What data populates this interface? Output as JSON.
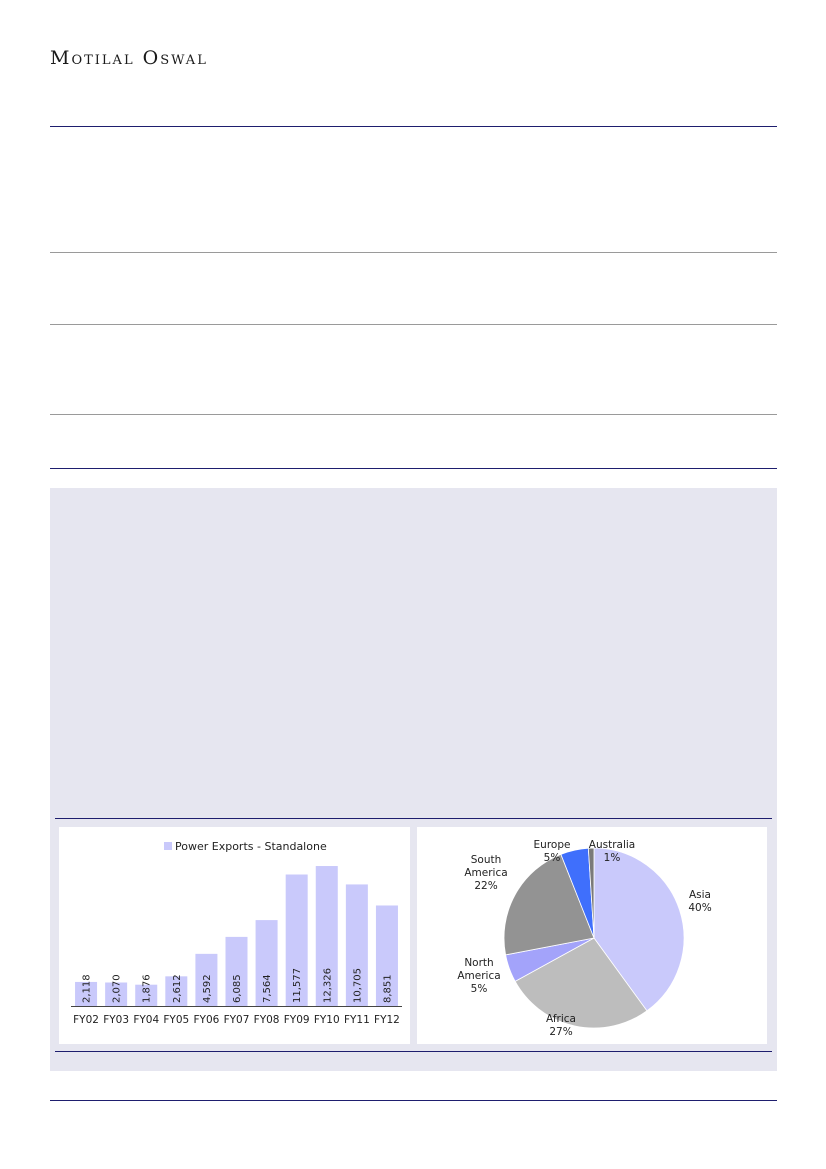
{
  "header": {
    "logo_text": "Motilal Oswal"
  },
  "colors": {
    "bar": "#c9c9fb",
    "navy_rule": "#1e1e6e",
    "panel_bg": "#e6e6f0"
  },
  "chart_data": [
    {
      "type": "bar",
      "legend": "Power Exports - Standalone",
      "legend_position": "top",
      "categories": [
        "FY02",
        "FY03",
        "FY04",
        "FY05",
        "FY06",
        "FY07",
        "FY08",
        "FY09",
        "FY10",
        "FY11",
        "FY12"
      ],
      "values": [
        2118,
        2070,
        1876,
        2612,
        4592,
        6085,
        7564,
        11577,
        12326,
        10705,
        8851
      ],
      "value_labels": [
        "2,118",
        "2,070",
        "1,876",
        "2,612",
        "4,592",
        "6,085",
        "7,564",
        "11,577",
        "12,326",
        "10,705",
        "8,851"
      ],
      "ylim": [
        0,
        14000
      ],
      "grid": false
    },
    {
      "type": "pie",
      "slices": [
        {
          "label": "Asia",
          "pct_label": "40%",
          "value": 40,
          "color": "#c9c9fb"
        },
        {
          "label": "Africa",
          "pct_label": "27%",
          "value": 27,
          "color": "#bdbdbd"
        },
        {
          "label": "North America",
          "pct_label": "5%",
          "value": 5,
          "color": "#a3a3fa"
        },
        {
          "label": "South America",
          "pct_label": "22%",
          "value": 22,
          "color": "#939393"
        },
        {
          "label": "Europe",
          "pct_label": "5%",
          "value": 5,
          "color": "#3f6ffc"
        },
        {
          "label": "Australia",
          "pct_label": "1%",
          "value": 1,
          "color": "#7a7a7a"
        }
      ]
    }
  ]
}
